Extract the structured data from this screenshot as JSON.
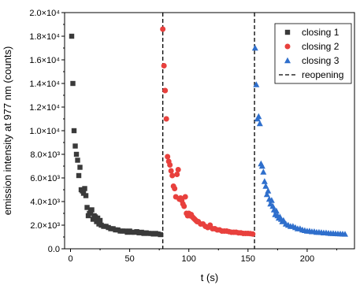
{
  "chart_data": {
    "type": "scatter",
    "xlabel": "t (s)",
    "ylabel": "emission intensity at 977 nm (counts)",
    "xlim": [
      -5,
      240
    ],
    "ylim": [
      0,
      20000
    ],
    "x_ticks": [
      0,
      50,
      100,
      150,
      200
    ],
    "y_ticks": [
      {
        "value": 0,
        "label": "0.0"
      },
      {
        "value": 2000,
        "label": "2.0×10³"
      },
      {
        "value": 4000,
        "label": "4.0×10³"
      },
      {
        "value": 6000,
        "label": "6.0×10³"
      },
      {
        "value": 8000,
        "label": "8.0×10³"
      },
      {
        "value": 10000,
        "label": "1.0×10⁴"
      },
      {
        "value": 12000,
        "label": "1.2×10⁴"
      },
      {
        "value": 14000,
        "label": "1.4×10⁴"
      },
      {
        "value": 16000,
        "label": "1.6×10⁴"
      },
      {
        "value": 18000,
        "label": "1.8×10⁴"
      },
      {
        "value": 20000,
        "label": "2.0×10⁴"
      }
    ],
    "grid": false,
    "legend_position": "top-right",
    "reopening_lines": [
      78,
      155.5
    ],
    "series": [
      {
        "name": "closing 1",
        "marker": "square",
        "color": "#3a3a3a",
        "x": [
          1,
          2,
          3,
          4,
          5,
          6,
          7,
          8,
          9,
          10,
          11,
          12,
          13,
          14,
          15,
          16,
          17,
          18,
          19,
          20,
          21,
          22,
          23,
          24,
          25,
          26,
          28,
          30,
          32,
          34,
          36,
          38,
          40,
          42,
          44,
          46,
          48,
          50,
          52,
          54,
          56,
          58,
          60,
          62,
          64,
          66,
          68,
          70,
          72,
          74,
          76
        ],
        "y": [
          18000,
          14000,
          10000,
          8700,
          8000,
          7500,
          6200,
          6900,
          5000,
          4900,
          4700,
          5100,
          4500,
          3500,
          2800,
          3000,
          3100,
          3300,
          2500,
          2800,
          2700,
          2300,
          2600,
          2100,
          2400,
          2000,
          1900,
          1900,
          1800,
          1700,
          1700,
          1600,
          1600,
          1500,
          1500,
          1500,
          1400,
          1500,
          1400,
          1400,
          1450,
          1350,
          1400,
          1300,
          1350,
          1300,
          1300,
          1250,
          1300,
          1250,
          1200
        ]
      },
      {
        "name": "closing 2",
        "marker": "circle",
        "color": "#e8403d",
        "x": [
          78,
          79,
          80,
          81,
          82,
          83,
          84,
          85,
          86,
          87,
          88,
          89,
          90,
          91,
          92,
          93,
          94,
          95,
          96,
          97,
          98,
          99,
          100,
          101,
          102,
          103,
          104,
          105,
          106,
          107,
          108,
          110,
          112,
          114,
          116,
          118,
          120,
          122,
          124,
          126,
          128,
          130,
          132,
          134,
          136,
          138,
          140,
          142,
          144,
          146,
          148,
          150,
          152,
          154
        ],
        "y": [
          18600,
          15500,
          13400,
          11000,
          7800,
          7400,
          7100,
          6600,
          6200,
          5300,
          5100,
          4400,
          6300,
          6700,
          4200,
          4300,
          4100,
          3800,
          3600,
          4400,
          3000,
          2800,
          3000,
          2800,
          2900,
          2700,
          2600,
          2500,
          2400,
          2300,
          2300,
          2100,
          2100,
          1900,
          1800,
          2000,
          1700,
          1700,
          1600,
          1600,
          1500,
          1500,
          1500,
          1450,
          1400,
          1400,
          1400,
          1350,
          1350,
          1300,
          1300,
          1300,
          1280,
          1250
        ]
      },
      {
        "name": "closing 3",
        "marker": "triangle",
        "color": "#2f6fcc",
        "x": [
          156,
          157,
          158,
          159,
          160,
          161,
          162,
          163,
          164,
          165,
          166,
          167,
          168,
          169,
          170,
          171,
          172,
          173,
          174,
          175,
          176,
          177,
          178,
          179,
          180,
          182,
          184,
          186,
          188,
          190,
          192,
          194,
          196,
          198,
          200,
          202,
          204,
          206,
          208,
          210,
          212,
          214,
          216,
          218,
          220,
          222,
          224,
          226,
          228,
          230,
          232
        ],
        "y": [
          17000,
          13900,
          11000,
          11200,
          10600,
          7200,
          7000,
          6500,
          5700,
          5300,
          4600,
          4900,
          4200,
          3800,
          4100,
          3600,
          3300,
          2900,
          3200,
          2800,
          2600,
          2700,
          2500,
          2300,
          2400,
          2100,
          2000,
          1900,
          1900,
          1800,
          1700,
          1700,
          1600,
          1550,
          1500,
          1500,
          1450,
          1450,
          1400,
          1400,
          1380,
          1350,
          1350,
          1320,
          1300,
          1300,
          1280,
          1270,
          1260,
          1250,
          1240
        ]
      }
    ],
    "legend": [
      {
        "label": "closing 1",
        "marker": "square",
        "color": "#3a3a3a"
      },
      {
        "label": "closing 2",
        "marker": "circle",
        "color": "#e8403d"
      },
      {
        "label": "closing 3",
        "marker": "triangle",
        "color": "#2f6fcc"
      },
      {
        "label": "reopening",
        "marker": "dashed-line",
        "color": "#000000"
      }
    ]
  }
}
